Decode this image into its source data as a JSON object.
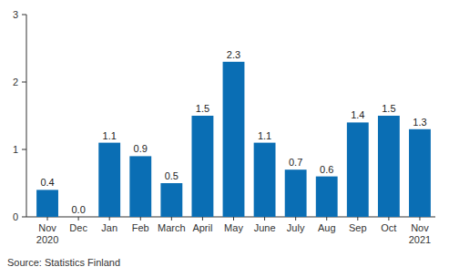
{
  "chart_data": {
    "type": "bar",
    "categories": [
      "Nov 2020",
      "Dec",
      "Jan",
      "Feb",
      "March",
      "April",
      "May",
      "June",
      "July",
      "Aug",
      "Sep",
      "Oct",
      "Nov 2021"
    ],
    "values": [
      0.4,
      0.0,
      1.1,
      0.9,
      0.5,
      1.5,
      2.3,
      1.1,
      0.7,
      0.6,
      1.4,
      1.5,
      1.3
    ],
    "value_labels": [
      "0.4",
      "0.0",
      "1.1",
      "0.9",
      "0.5",
      "1.5",
      "2.3",
      "1.1",
      "0.7",
      "0.6",
      "1.4",
      "1.5",
      "1.3"
    ],
    "color": "#0a6eb4",
    "ylim": [
      0,
      3
    ],
    "yticks": [
      0,
      1,
      2,
      3
    ],
    "grid": false,
    "data_labels": true,
    "source": "Source: Statistics Finland"
  }
}
